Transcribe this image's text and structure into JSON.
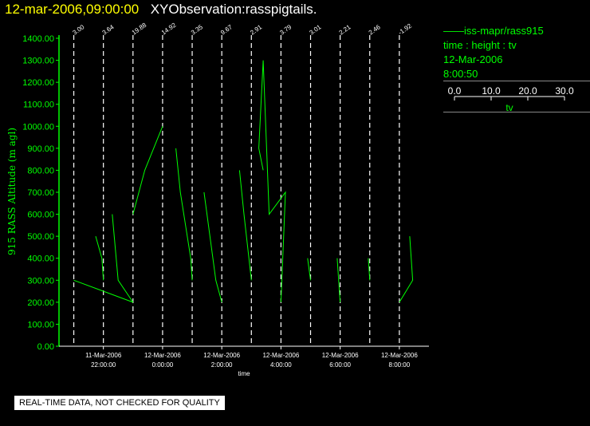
{
  "header": {
    "date": "12-mar-2006,09:00:00",
    "title": "XYObservation:rasspigtails."
  },
  "legend": {
    "series_name": "iss-mapr/rass915",
    "line2": "time : height : tv",
    "line3": "12-Mar-2006",
    "line4": "8:00:50",
    "scale_ticks": [
      "0.0",
      "10.0",
      "20.0",
      "30.0"
    ],
    "scale_label": "tv"
  },
  "notice": "REAL-TIME DATA, NOT CHECKED FOR QUALITY",
  "colors": {
    "trace": "#00ff00",
    "title": "#ffff00",
    "axes": "#ffffff",
    "background": "#000000"
  },
  "chart_data": {
    "type": "line",
    "ylabel": "915 RASS Altitude (m agl)",
    "xlabel": "time",
    "ylim": [
      0,
      1400
    ],
    "yticks": [
      "0.00",
      "100.00",
      "200.00",
      "300.00",
      "400.00",
      "500.00",
      "600.00",
      "700.00",
      "800.00",
      "900.00",
      "1000.00",
      "1100.00",
      "1200.00",
      "1300.00",
      "1400.00"
    ],
    "xlim": [
      "2006-03-11T20:30",
      "2006-03-12T09:00"
    ],
    "xticks": [
      {
        "t": "2006-03-11T22:00",
        "date": "11-Mar-2006",
        "time": "22:00:00"
      },
      {
        "t": "2006-03-12T00:00",
        "date": "12-Mar-2006",
        "time": "0:00:00"
      },
      {
        "t": "2006-03-12T02:00",
        "date": "12-Mar-2006",
        "time": "2:00:00"
      },
      {
        "t": "2006-03-12T04:00",
        "date": "12-Mar-2006",
        "time": "4:00:00"
      },
      {
        "t": "2006-03-12T06:00",
        "date": "12-Mar-2006",
        "time": "6:00:00"
      },
      {
        "t": "2006-03-12T08:00",
        "date": "12-Mar-2006",
        "time": "8:00:00"
      }
    ],
    "tv_scale_units_per_hour": 10,
    "profiles": [
      {
        "t": "2006-03-11T21:00",
        "label": "3.00",
        "tv": [
          [
            0,
            300
          ],
          [
            20,
            200
          ]
        ]
      },
      {
        "t": "2006-03-11T22:00",
        "label": "3.64",
        "tv": [
          [
            -2.6,
            500
          ],
          [
            -0.5,
            400
          ],
          [
            0,
            300
          ]
        ]
      },
      {
        "t": "2006-03-11T23:00",
        "label": "19.88",
        "tv": [
          [
            -7,
            600
          ],
          [
            -5,
            300
          ],
          [
            0,
            200
          ]
        ]
      },
      {
        "t": "2006-03-12T00:00",
        "label": "14.92",
        "tv": [
          [
            -10,
            600
          ],
          [
            -6,
            800
          ],
          [
            0,
            1000
          ]
        ]
      },
      {
        "t": "2006-03-12T01:00",
        "label": "3.35",
        "tv": [
          [
            -5.5,
            900
          ],
          [
            -4,
            700
          ],
          [
            -0.5,
            400
          ],
          [
            0,
            300
          ]
        ]
      },
      {
        "t": "2006-03-12T02:00",
        "label": "9.67",
        "tv": [
          [
            -6,
            700
          ],
          [
            -4,
            500
          ],
          [
            -2,
            300
          ],
          [
            0,
            200
          ]
        ]
      },
      {
        "t": "2006-03-12T03:00",
        "label": "2.91",
        "tv": [
          [
            -4,
            800
          ],
          [
            -2.5,
            600
          ],
          [
            0,
            300
          ]
        ]
      },
      {
        "t": "2006-03-12T04:00",
        "label": "3.79",
        "tv": [
          [
            -6,
            800
          ],
          [
            -7.5,
            900
          ],
          [
            -6,
            1300
          ],
          [
            -4,
            600
          ],
          [
            1.5,
            700
          ],
          [
            0,
            200
          ]
        ]
      },
      {
        "t": "2006-03-12T05:00",
        "label": "3.01",
        "tv": [
          [
            -1,
            400
          ],
          [
            0,
            300
          ]
        ]
      },
      {
        "t": "2006-03-12T06:00",
        "label": "2.21",
        "tv": [
          [
            -1,
            400
          ],
          [
            0,
            200
          ]
        ]
      },
      {
        "t": "2006-03-12T07:00",
        "label": "2.46",
        "tv": [
          [
            -0.5,
            400
          ],
          [
            0,
            300
          ]
        ]
      },
      {
        "t": "2006-03-12T08:00",
        "label": "-1.92",
        "tv": [
          [
            3.5,
            500
          ],
          [
            4.5,
            300
          ],
          [
            0,
            200
          ]
        ]
      }
    ]
  }
}
